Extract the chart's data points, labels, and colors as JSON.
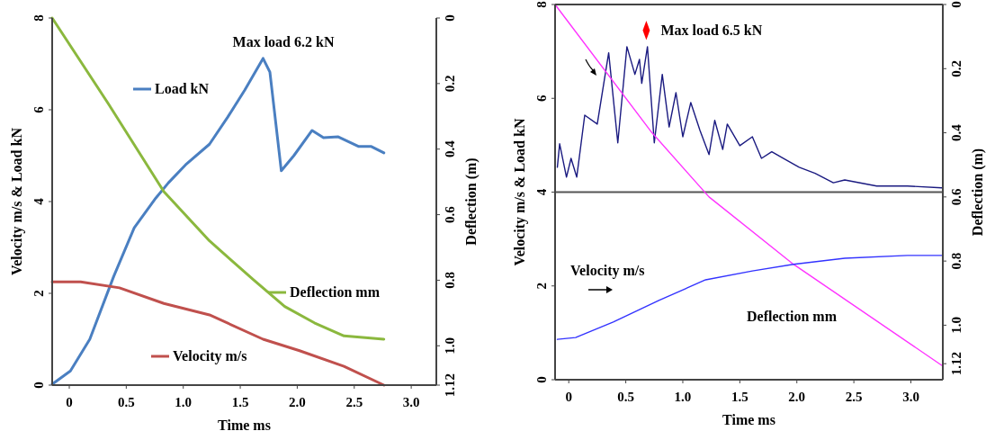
{
  "chart_data": [
    {
      "type": "line",
      "legend": "right",
      "xlabel": "Time ms",
      "ylabel": "Velocity m/s & Load kN",
      "y2label": "Deflection (m)",
      "annotations": [
        "Max load 6.2 kN"
      ],
      "xlim": [
        -0.15,
        3.22
      ],
      "xticks": [
        0,
        0.5,
        {
          "value": 1,
          "label": "1.0"
        },
        1.5,
        {
          "value": 2,
          "label": "2.0"
        },
        2.5,
        {
          "value": 3,
          "label": "3.0"
        }
      ],
      "ylim": [
        0,
        8
      ],
      "yticks": [
        0,
        2,
        4,
        6,
        8
      ],
      "y2lim": [
        1.12,
        0
      ],
      "y2ticks": [
        0,
        0.2,
        0.4,
        0.6,
        0.8,
        {
          "value": 1,
          "label": "1.0"
        },
        1.12
      ],
      "series": [
        {
          "name": "Load kN",
          "color": "#4a7fc1",
          "x": [
            -0.15,
            0.01,
            0.18,
            0.39,
            0.57,
            0.76,
            0.87,
            1.02,
            1.23,
            1.39,
            1.54,
            1.7,
            1.76,
            1.86,
            1.97,
            2.13,
            2.23,
            2.36,
            2.54,
            2.65,
            2.76
          ],
          "values": [
            0.02,
            0.31,
            1.0,
            2.37,
            3.43,
            4.08,
            4.41,
            4.8,
            5.25,
            5.84,
            6.43,
            7.12,
            6.82,
            4.67,
            5.0,
            5.55,
            5.39,
            5.41,
            5.2,
            5.2,
            5.06
          ]
        },
        {
          "name": "Deflection mm",
          "color": "#8bb83e",
          "axis": "y2",
          "x": [
            -0.15,
            0.34,
            0.83,
            1.23,
            1.62,
            1.89,
            2.15,
            2.41,
            2.76
          ],
          "values": [
            0,
            0.26,
            0.53,
            0.68,
            0.8,
            0.88,
            0.93,
            0.97,
            0.98
          ]
        },
        {
          "name": "Velocity m/s",
          "color": "#c0504d",
          "x": [
            -0.15,
            0.1,
            0.44,
            0.83,
            1.23,
            1.7,
            2.02,
            2.41,
            2.76
          ],
          "values": [
            2.25,
            2.25,
            2.12,
            1.78,
            1.53,
            1.0,
            0.75,
            0.41,
            0
          ]
        }
      ]
    },
    {
      "type": "line",
      "xlabel": "Time ms",
      "ylabel": "Velocity m/s & Load kN",
      "y2label": "Deflection (m)",
      "annotations": [
        {
          "text": "Max load 6.5 kN",
          "x": 0.68,
          "y": 7.45
        }
      ],
      "xlim": [
        -0.12,
        3.28
      ],
      "xticks": [
        0,
        0.5,
        {
          "value": 1,
          "label": "1.0"
        },
        1.5,
        {
          "value": 2,
          "label": "2.0"
        },
        2.5,
        {
          "value": 3,
          "label": "3.0"
        }
      ],
      "ylim": [
        0,
        8
      ],
      "yticks": [
        0,
        2,
        4,
        6,
        8
      ],
      "y2lim": [
        1.17,
        0
      ],
      "y2ticks": [
        0,
        0.2,
        0.4,
        0.6,
        0.8,
        {
          "value": 1,
          "label": "1.0"
        },
        1.12
      ],
      "ref_lines": [
        {
          "axis": "y",
          "value": 4,
          "color": "#555555"
        }
      ],
      "series": [
        {
          "color": "#1a1a80",
          "x": [
            -0.1,
            -0.08,
            -0.02,
            0.02,
            0.07,
            0.14,
            0.25,
            0.35,
            0.43,
            0.51,
            0.58,
            0.62,
            0.64,
            0.69,
            0.75,
            0.82,
            0.88,
            0.94,
            1.0,
            1.07,
            1.15,
            1.23,
            1.28,
            1.35,
            1.39,
            1.5,
            1.61,
            1.69,
            1.78,
            1.88,
            2.02,
            2.16,
            2.32,
            2.42,
            2.7,
            2.97,
            3.27
          ],
          "values": [
            4.53,
            5.03,
            4.32,
            4.72,
            4.32,
            5.64,
            5.45,
            6.97,
            5.05,
            7.1,
            6.51,
            6.83,
            6.32,
            7.1,
            5.05,
            6.51,
            5.39,
            6.12,
            5.18,
            5.91,
            5.32,
            4.8,
            5.53,
            4.91,
            5.45,
            4.99,
            5.18,
            4.72,
            4.86,
            4.72,
            4.53,
            4.4,
            4.2,
            4.26,
            4.13,
            4.13,
            4.09
          ]
        },
        {
          "name": "Deflection mm",
          "color": "#ff33ff",
          "axis": "y2",
          "x": [
            -0.12,
            0.73,
            1.23,
            1.97,
            3.27
          ],
          "values": [
            0,
            0.4,
            0.6,
            0.81,
            1.125
          ]
        },
        {
          "name": "Velocity m/s",
          "color": "#3333ff",
          "x": [
            -0.1,
            0.06,
            0.39,
            0.79,
            1.2,
            1.61,
            1.97,
            2.42,
            2.97,
            3.27
          ],
          "values": [
            0.86,
            0.9,
            1.23,
            1.69,
            2.13,
            2.32,
            2.46,
            2.59,
            2.65,
            2.65
          ]
        },
        {
          "type": "scatter",
          "marker": "diamond",
          "color": "#ff0000",
          "x": [
            0.68
          ],
          "values": [
            7.45
          ]
        }
      ]
    }
  ]
}
